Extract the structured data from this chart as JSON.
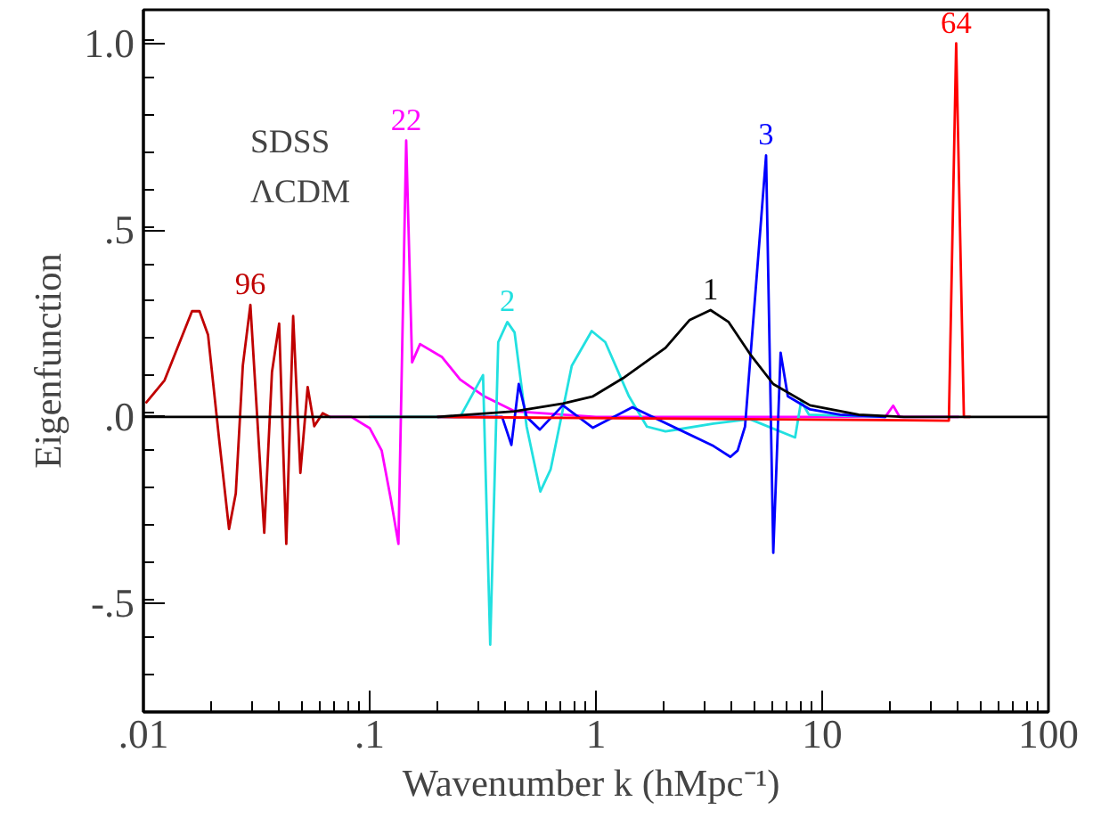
{
  "chart_data": {
    "type": "line",
    "xlabel": "Wavenumber k  (hMpc⁻¹)",
    "ylabel": "Eigenfunction",
    "annotations": [
      "SDSS",
      "ΛCDM"
    ],
    "log": "x",
    "xlim": [
      0.01,
      100
    ],
    "ylim": [
      -0.79,
      1.09
    ],
    "xticks": [
      {
        "value": 0.01,
        "label": ".01"
      },
      {
        "value": 0.1,
        "label": ".1"
      },
      1,
      10,
      100
    ],
    "yticks": [
      {
        "value": -0.5,
        "label": "-.5"
      },
      {
        "value": 0,
        "label": ".0"
      },
      {
        "value": 0.5,
        "label": ".5"
      },
      {
        "value": 1,
        "label": "1.0"
      }
    ],
    "grid": false,
    "marker": "none",
    "line_style": "solid",
    "series": [
      {
        "name": "96",
        "color": "#c00000",
        "x": [
          0.0103,
          0.0124,
          0.0164,
          0.0177,
          0.0193,
          0.0216,
          0.0239,
          0.0256,
          0.0275,
          0.0297,
          0.0342,
          0.037,
          0.0398,
          0.0428,
          0.0459,
          0.0494,
          0.0532,
          0.0569,
          0.062,
          0.0667
        ],
        "values": [
          0.039,
          0.098,
          0.283,
          0.283,
          0.22,
          -0.059,
          -0.3,
          -0.205,
          0.137,
          0.3,
          -0.31,
          0.12,
          0.25,
          -0.34,
          0.27,
          -0.15,
          0.08,
          -0.025,
          0.01,
          0
        ]
      },
      {
        "name": "22",
        "color": "#ff00ff",
        "x": [
          0.0667,
          0.083,
          0.1,
          0.113,
          0.124,
          0.134,
          0.145,
          0.154,
          0.167,
          0.209,
          0.251,
          0.321,
          0.437,
          1.0,
          19.0,
          20.6,
          22.0,
          40.0
        ],
        "values": [
          0,
          0,
          -0.03,
          -0.09,
          -0.22,
          -0.34,
          0.74,
          0.146,
          0.195,
          0.16,
          0.1,
          0.055,
          0.015,
          0,
          0,
          0.03,
          0,
          0
        ]
      },
      {
        "name": "2",
        "color": "#22e0e0",
        "x": [
          0.1,
          0.251,
          0.317,
          0.341,
          0.37,
          0.406,
          0.437,
          0.494,
          0.568,
          0.631,
          0.782,
          0.958,
          1.1,
          1.4,
          1.68,
          2.03,
          3.31,
          4.79,
          7.59,
          8.07,
          8.74,
          19.0
        ],
        "values": [
          0,
          0,
          0.112,
          -0.61,
          0.2,
          0.254,
          0.226,
          -0.026,
          -0.2,
          -0.14,
          0.137,
          0.23,
          0.2,
          0.055,
          -0.026,
          -0.039,
          -0.018,
          -0.006,
          -0.055,
          0.042,
          0.006,
          0
        ]
      },
      {
        "name": "3",
        "color": "#0000ff",
        "x": [
          0.2,
          0.385,
          0.423,
          0.456,
          0.494,
          0.565,
          0.714,
          0.97,
          1.45,
          3.31,
          3.93,
          4.23,
          4.56,
          5.65,
          6.08,
          6.55,
          7.05,
          8.84,
          12.0,
          19.0
        ],
        "values": [
          0,
          0,
          -0.075,
          0.088,
          0,
          -0.034,
          0.031,
          -0.029,
          0.026,
          -0.078,
          -0.107,
          -0.09,
          -0.026,
          0.7,
          -0.364,
          0.172,
          0.055,
          0.02,
          0.006,
          0
        ]
      },
      {
        "name": "64",
        "color": "#ff0000",
        "x": [
          0.2,
          36.3,
          39.1,
          42.3,
          45.0
        ],
        "values": [
          0,
          -0.01,
          1.0,
          0,
          0
        ]
      },
      {
        "name": "1",
        "color": "#000000",
        "x": [
          0.01,
          0.2,
          0.437,
          0.714,
          0.97,
          1.32,
          2.03,
          2.59,
          3.21,
          3.86,
          4.79,
          6.08,
          8.84,
          14.5,
          23.0,
          100
        ],
        "values": [
          0,
          0,
          0.015,
          0.036,
          0.055,
          0.104,
          0.185,
          0.259,
          0.286,
          0.254,
          0.169,
          0.088,
          0.031,
          0.006,
          0,
          0
        ]
      }
    ]
  }
}
